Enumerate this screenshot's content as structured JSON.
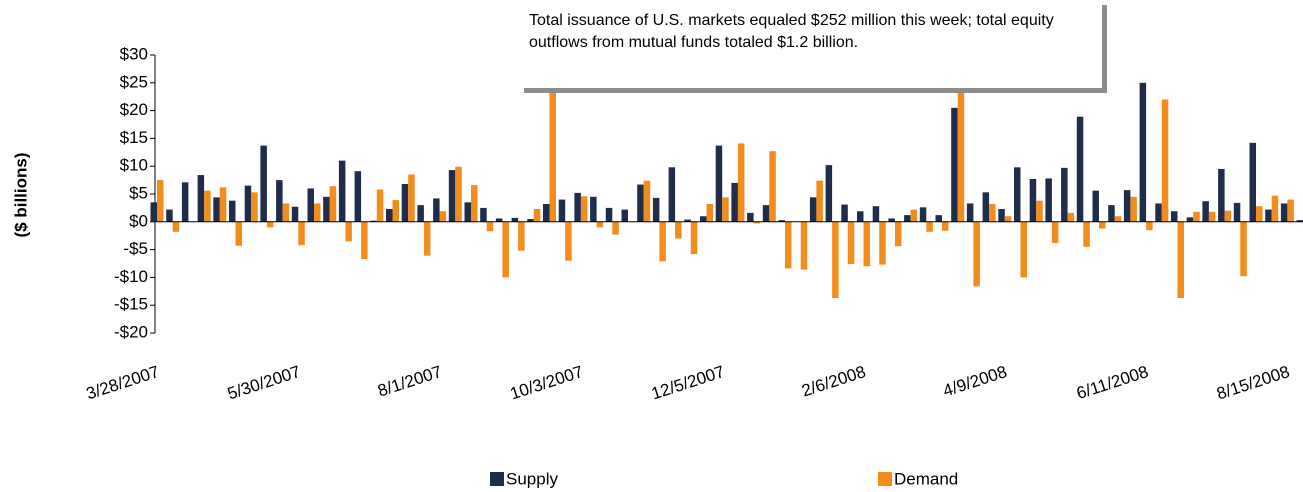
{
  "chart_data": {
    "type": "bar",
    "y_label": "($ billions)",
    "annotation": "Total issuance of U.S. markets equaled $252 million this week; total equity outflows from mutual funds totaled $1.2 billion.",
    "categories": [
      "3/28/2007",
      null,
      null,
      null,
      null,
      null,
      null,
      null,
      null,
      "5/30/2007",
      null,
      null,
      null,
      null,
      null,
      null,
      null,
      null,
      "8/1/2007",
      null,
      null,
      null,
      null,
      null,
      null,
      null,
      null,
      "10/3/2007",
      null,
      null,
      null,
      null,
      null,
      null,
      null,
      null,
      "12/5/2007",
      null,
      null,
      null,
      null,
      null,
      null,
      null,
      null,
      "2/6/2008",
      null,
      null,
      null,
      null,
      null,
      null,
      null,
      null,
      "4/9/2008",
      null,
      null,
      null,
      null,
      null,
      null,
      null,
      null,
      "6/11/2008",
      null,
      null,
      null,
      null,
      null,
      null,
      null,
      null,
      "8/15/2008",
      null
    ],
    "series": [
      {
        "name": "Supply",
        "color": "#1f2d4a",
        "values": [
          3.5,
          2.2,
          7.1,
          8.4,
          4.4,
          3.8,
          6.5,
          13.7,
          7.5,
          2.7,
          6.0,
          4.5,
          11.0,
          9.1,
          0.2,
          2.3,
          6.8,
          3.0,
          4.2,
          9.3,
          3.5,
          2.5,
          0.6,
          0.7,
          0.5,
          3.2,
          4.0,
          5.2,
          4.5,
          2.5,
          2.2,
          6.7,
          4.3,
          9.8,
          0.4,
          1.0,
          13.7,
          7.0,
          1.6,
          3.0,
          0.3,
          0,
          4.4,
          10.2,
          3.1,
          1.9,
          2.8,
          0.6,
          1.2,
          2.6,
          1.2,
          20.5,
          3.3,
          5.3,
          2.3,
          9.8,
          7.7,
          7.8,
          9.7,
          18.9,
          5.6,
          3.0,
          5.7,
          25.0,
          3.3,
          1.9,
          0.8,
          3.7,
          9.5,
          3.4,
          14.2,
          2.2,
          3.3,
          0.3
        ]
      },
      {
        "name": "Demand",
        "color": "#f28c1c",
        "values": [
          7.5,
          -1.8,
          0,
          5.6,
          6.2,
          -4.3,
          5.3,
          -1.0,
          3.3,
          -4.2,
          3.3,
          6.4,
          -3.5,
          -6.7,
          5.8,
          3.9,
          8.5,
          -6.1,
          1.9,
          9.9,
          6.6,
          -1.7,
          -10.0,
          -5.2,
          2.3,
          27,
          -7.0,
          4.6,
          -1.0,
          -2.3,
          0,
          7.4,
          -7.1,
          -3.0,
          -5.8,
          3.2,
          4.4,
          14.1,
          -0.3,
          12.7,
          -8.4,
          -8.6,
          7.4,
          -13.7,
          -7.6,
          -8.0,
          -7.7,
          -4.4,
          2.2,
          -1.8,
          -1.6,
          27,
          -11.6,
          3.2,
          1.0,
          -10.0,
          3.8,
          -3.8,
          1.6,
          -4.5,
          -1.2,
          1.0,
          4.5,
          -1.5,
          22.0,
          -13.7,
          1.8,
          1.8,
          2.0,
          -9.8,
          2.8,
          4.7,
          4.0,
          0
        ]
      }
    ],
    "ylim": [
      -20,
      30
    ],
    "yticks": [
      {
        "value": -20,
        "label": "-$20"
      },
      {
        "value": -15,
        "label": "-$15"
      },
      {
        "value": -10,
        "label": "-$10"
      },
      {
        "value": -5,
        "label": "-$5"
      },
      {
        "value": 0,
        "label": "$0"
      },
      {
        "value": 5,
        "label": "$5"
      },
      {
        "value": 10,
        "label": "$10"
      },
      {
        "value": 15,
        "label": "$15"
      },
      {
        "value": 20,
        "label": "$20"
      },
      {
        "value": 25,
        "label": "$25"
      },
      {
        "value": 30,
        "label": "$30"
      }
    ],
    "grid": false
  }
}
